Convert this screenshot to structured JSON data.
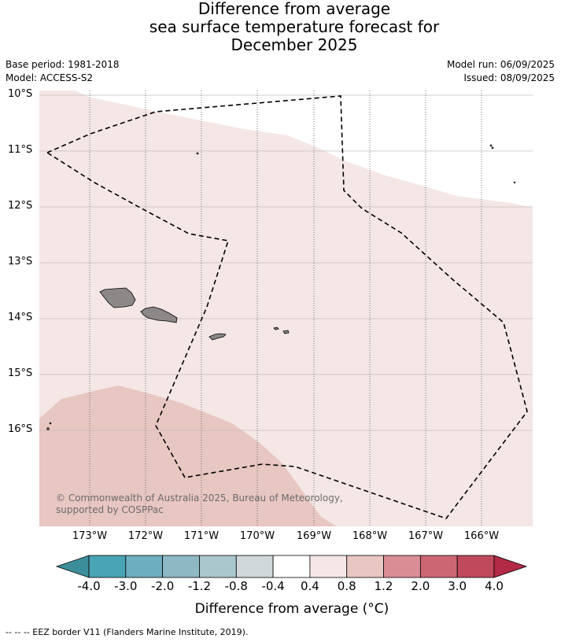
{
  "title": {
    "line1": "Difference from average",
    "line2": "sea surface temperature forecast for",
    "line3": "December 2025"
  },
  "meta": {
    "base_period": "Base period: 1981-2018",
    "model": "Model: ACCESS-S2",
    "model_run": "Model run: 06/09/2025",
    "issued": "Issued: 08/09/2025"
  },
  "map": {
    "lon_range": [
      -173.9,
      -165.1
    ],
    "lat_range": [
      -17.7,
      -9.9
    ],
    "lat_labels": [
      "10°S",
      "11°S",
      "12°S",
      "13°S",
      "14°S",
      "15°S",
      "16°S"
    ],
    "lon_labels": [
      "173°W",
      "172°W",
      "171°W",
      "170°W",
      "169°W",
      "168°W",
      "167°W",
      "166°W"
    ],
    "gridlines": true,
    "land_color": "#8c8888",
    "eez_outline_color": "#000000",
    "anomaly_fields": [
      {
        "range": "0.4 to 0.8",
        "color": "#f4e7e6"
      },
      {
        "range": "0.8 to 1.2",
        "color": "#e8c6c2"
      }
    ],
    "copyright": "© Commonwealth of Australia 2025, Bureau of Meteorology, supported by COSPPac"
  },
  "colorbar": {
    "title": "Difference from average (°C)",
    "tick_labels": [
      "-4.0",
      "-3.0",
      "-2.0",
      "-1.2",
      "-0.8",
      "-0.4",
      "0.4",
      "0.8",
      "1.2",
      "2.0",
      "3.0",
      "4.0"
    ],
    "colors": [
      "#3c8f9a",
      "#49a4b5",
      "#6dafc0",
      "#8db8c4",
      "#a9c7cc",
      "#cfd7d8",
      "#ffffff",
      "#f4e7e6",
      "#e8c6c2",
      "#d98e95",
      "#cd6673",
      "#c04a5c",
      "#b32a46"
    ]
  },
  "footnote": "--  --  -- EEZ border V11 (Flanders Marine Institute, 2019)."
}
